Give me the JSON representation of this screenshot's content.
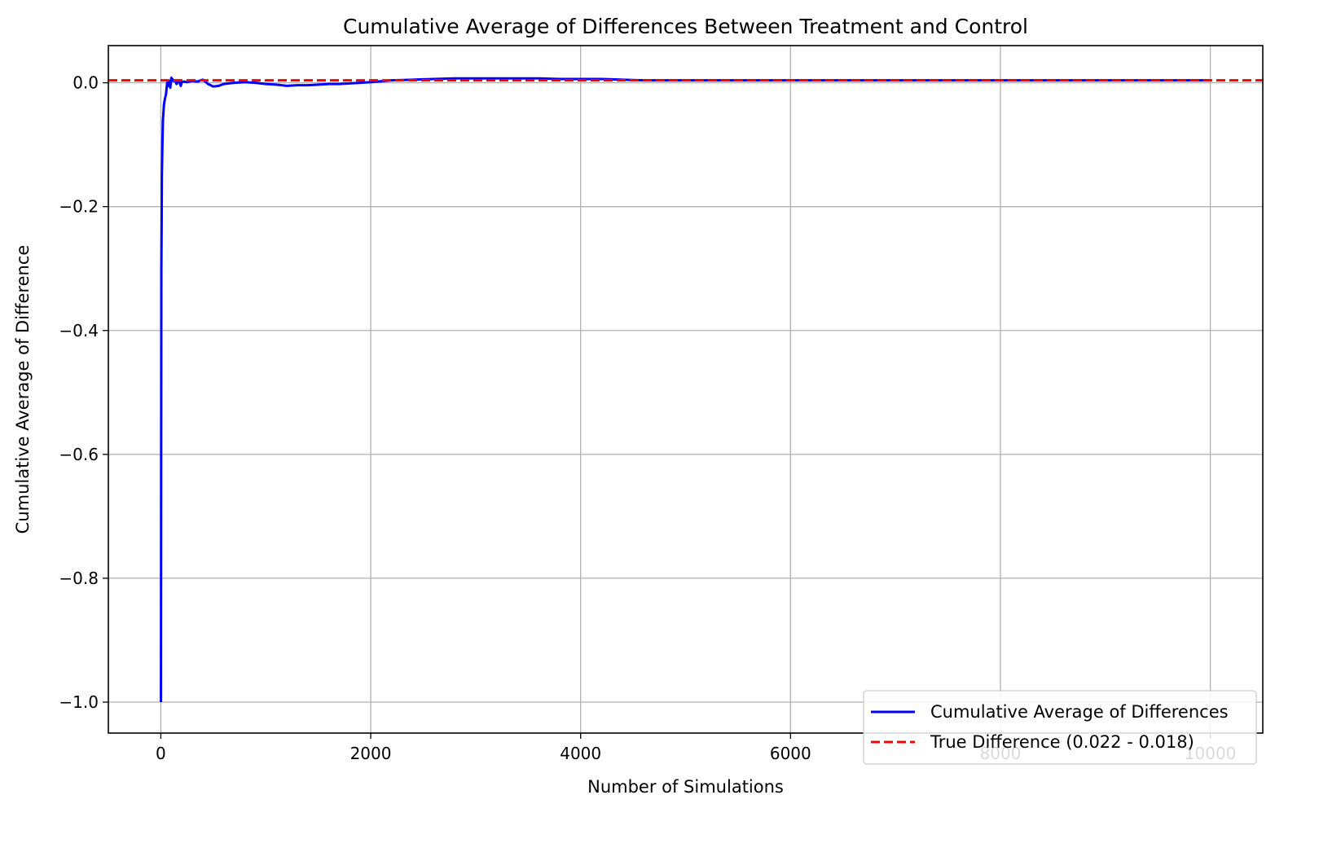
{
  "chart_data": {
    "type": "line",
    "title": "Cumulative Average of Differences Between Treatment and Control",
    "xlabel": "Number of Simulations",
    "ylabel": "Cumulative Average of Difference",
    "xlim": [
      -500,
      10500
    ],
    "ylim": [
      -1.05,
      0.06
    ],
    "xticks": [
      0,
      2000,
      4000,
      6000,
      8000,
      10000
    ],
    "xtick_labels": [
      "0",
      "2000",
      "4000",
      "6000",
      "8000",
      "10000"
    ],
    "yticks": [
      0.0,
      -0.2,
      -0.4,
      -0.6,
      -0.8,
      -1.0
    ],
    "ytick_labels": [
      "0.0",
      "−0.2",
      "−0.4",
      "−0.6",
      "−0.8",
      "−1.0"
    ],
    "grid": true,
    "legend_position": "lower-right",
    "series": [
      {
        "name": "Cumulative Average of Differences",
        "color": "#0000ff",
        "style": "solid",
        "x": [
          1,
          3,
          5,
          8,
          10,
          15,
          20,
          30,
          40,
          50,
          60,
          70,
          80,
          90,
          100,
          110,
          120,
          130,
          140,
          150,
          170,
          190,
          200,
          220,
          250,
          300,
          350,
          400,
          450,
          500,
          550,
          600,
          700,
          800,
          900,
          1000,
          1100,
          1200,
          1300,
          1400,
          1500,
          1600,
          1700,
          1800,
          1900,
          2000,
          2200,
          2400,
          2600,
          2800,
          3000,
          3200,
          3400,
          3600,
          3800,
          4000,
          4200,
          4400,
          4600,
          4800,
          5000,
          5500,
          6000,
          6500,
          7000,
          7500,
          8000,
          8500,
          9000,
          9500,
          10000
        ],
        "y": [
          -1.0,
          -0.6,
          -0.3,
          -0.22,
          -0.15,
          -0.1,
          -0.06,
          -0.035,
          -0.025,
          -0.018,
          0.0,
          -0.005,
          0.003,
          -0.008,
          0.008,
          0.006,
          0.003,
          0.004,
          0.002,
          -0.002,
          0.004,
          -0.005,
          0.001,
          0.002,
          0.001,
          0.003,
          0.002,
          0.005,
          -0.002,
          -0.006,
          -0.005,
          -0.002,
          0.0,
          0.001,
          0.0,
          -0.002,
          -0.003,
          -0.005,
          -0.004,
          -0.004,
          -0.003,
          -0.002,
          -0.002,
          -0.001,
          0.0,
          0.001,
          0.004,
          0.005,
          0.006,
          0.007,
          0.007,
          0.007,
          0.007,
          0.007,
          0.006,
          0.006,
          0.006,
          0.005,
          0.004,
          0.004,
          0.004,
          0.004,
          0.004,
          0.004,
          0.004,
          0.004,
          0.004,
          0.004,
          0.004,
          0.004,
          0.004
        ]
      },
      {
        "name": "True Difference (0.022 - 0.018)",
        "color": "#ff0000",
        "style": "dashed",
        "hline": 0.004
      }
    ]
  }
}
